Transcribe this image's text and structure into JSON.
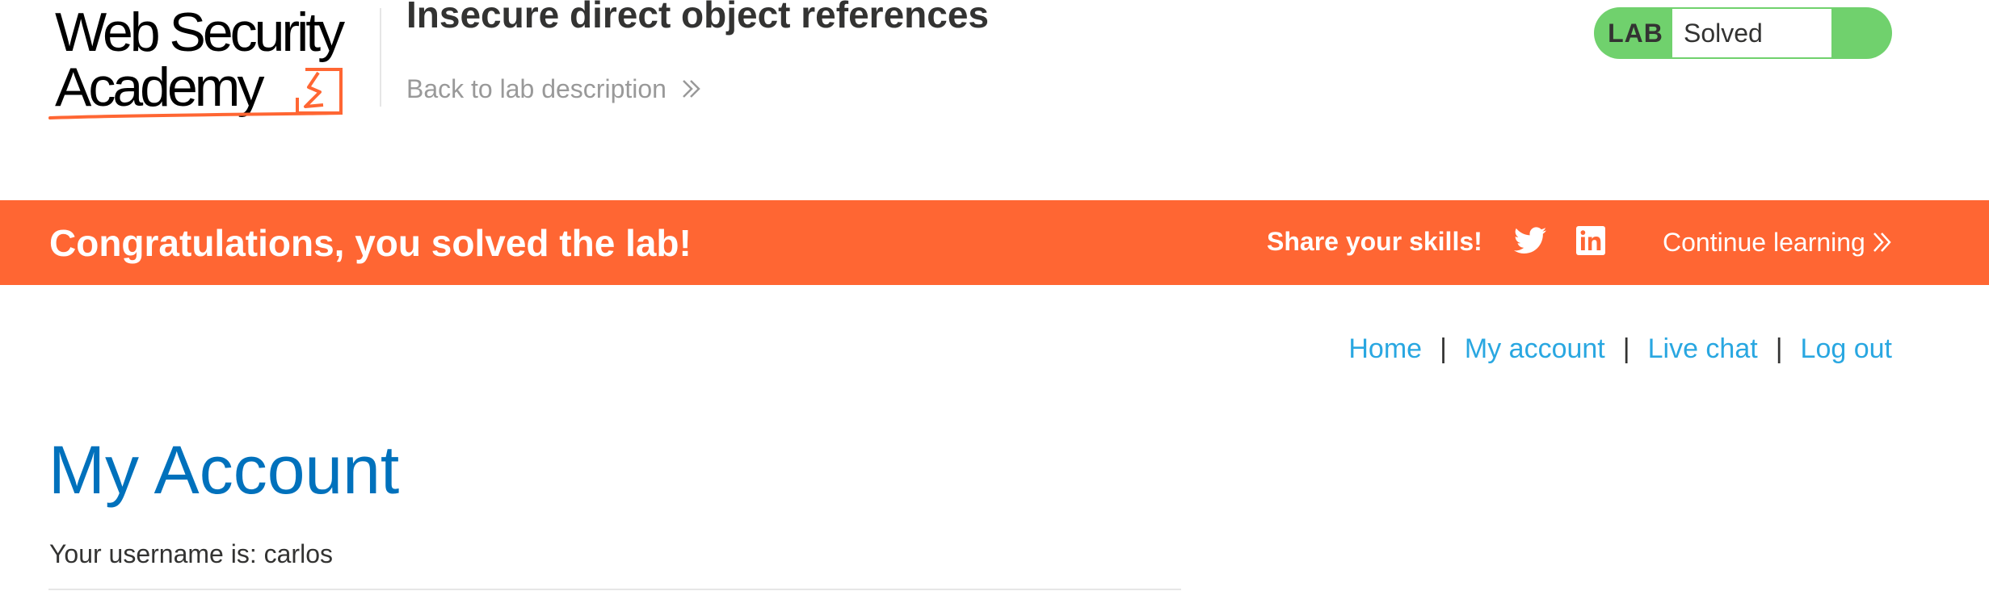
{
  "header": {
    "logo": {
      "line1": "Web Security",
      "line2": "Academy",
      "accent_color": "#ff6633"
    },
    "lab_title": "Insecure direct object references",
    "back_link": "Back to lab description",
    "status": {
      "label": "LAB",
      "value": "Solved",
      "color": "#70d16d"
    }
  },
  "notification": {
    "message": "Congratulations, you solved the lab!",
    "share_label": "Share your skills!",
    "icons": [
      "twitter-icon",
      "linkedin-icon"
    ],
    "continue_label": "Continue learning",
    "background": "#ff6633"
  },
  "nav": {
    "items": [
      "Home",
      "My account",
      "Live chat",
      "Log out"
    ],
    "separator": "|",
    "link_color": "#29a7e1"
  },
  "main": {
    "title": "My Account",
    "username_text": "Your username is: carlos",
    "title_color": "#0071bc"
  }
}
